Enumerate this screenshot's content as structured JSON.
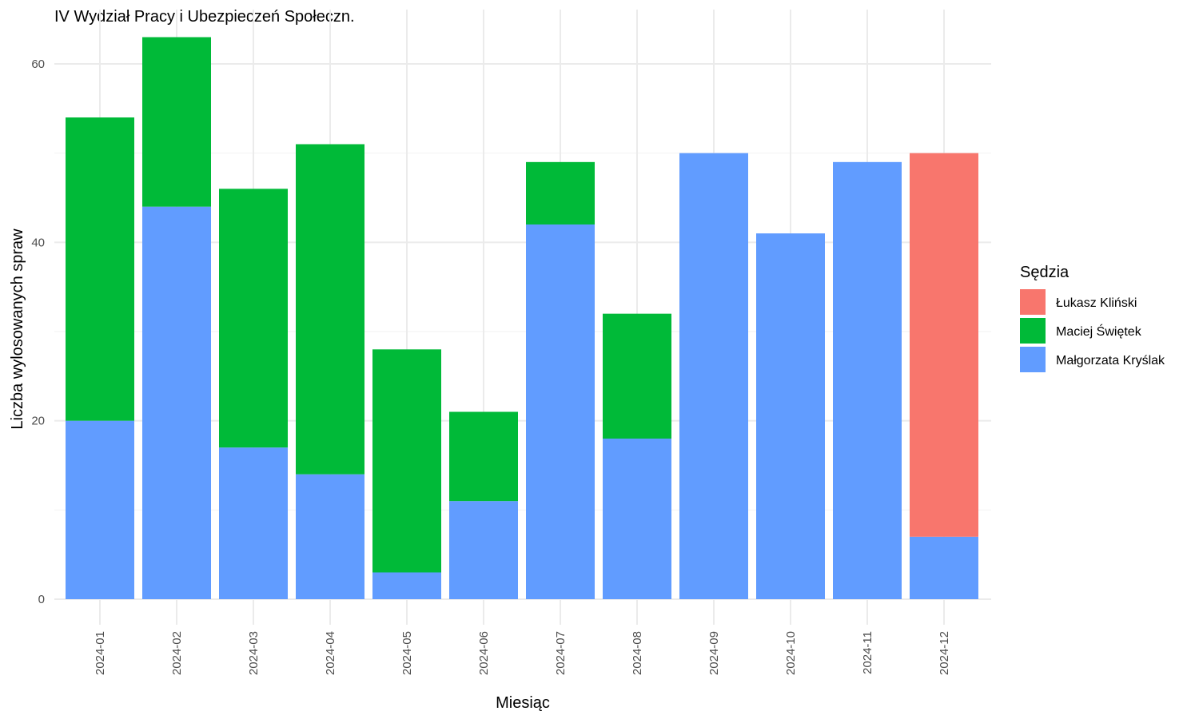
{
  "chart_data": {
    "type": "bar",
    "stacked": true,
    "title": "IV Wydział Pracy i Ubezpieczeń Społeczn.",
    "xlabel": "Miesiąc",
    "ylabel": "Liczba wylosowanych spraw",
    "ylim": [
      0,
      63
    ],
    "yticks": [
      0,
      20,
      40,
      60
    ],
    "grid": true,
    "legend_position": "right",
    "legend_title": "Sędzia",
    "categories": [
      "2024-01",
      "2024-02",
      "2024-03",
      "2024-04",
      "2024-05",
      "2024-06",
      "2024-07",
      "2024-08",
      "2024-09",
      "2024-10",
      "2024-11",
      "2024-12"
    ],
    "series": [
      {
        "name": "Małgorzata Kryślak",
        "color": "#619cff",
        "values": [
          20,
          44,
          17,
          14,
          3,
          11,
          42,
          18,
          50,
          41,
          49,
          7
        ]
      },
      {
        "name": "Maciej Świętek",
        "color": "#00ba38",
        "values": [
          34,
          19,
          29,
          37,
          25,
          10,
          7,
          14,
          0,
          0,
          0,
          0
        ]
      },
      {
        "name": "Łukasz Kliński",
        "color": "#f8766d",
        "values": [
          0,
          0,
          0,
          0,
          0,
          0,
          0,
          0,
          0,
          0,
          0,
          43
        ]
      }
    ],
    "legend_order": [
      "Łukasz Kliński",
      "Maciej Świętek",
      "Małgorzata Kryślak"
    ]
  }
}
